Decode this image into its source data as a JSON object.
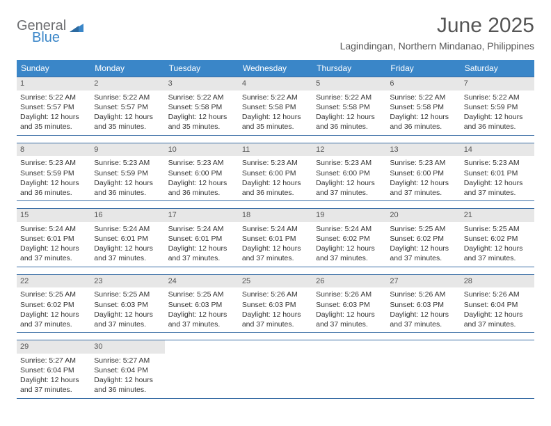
{
  "brand": {
    "part1": "General",
    "part2": "Blue"
  },
  "title": "June 2025",
  "location": "Lagindingan, Northern Mindanao, Philippines",
  "colors": {
    "header_bg": "#3a86c8",
    "header_text": "#ffffff",
    "row_border": "#3a6ea5",
    "daynum_bg": "#e7e7e7",
    "text": "#333333",
    "brand_gray": "#6d6e71",
    "brand_blue": "#3a86c8",
    "page_bg": "#ffffff"
  },
  "weekdays": [
    "Sunday",
    "Monday",
    "Tuesday",
    "Wednesday",
    "Thursday",
    "Friday",
    "Saturday"
  ],
  "weeks": [
    [
      {
        "num": "1",
        "sunrise": "Sunrise: 5:22 AM",
        "sunset": "Sunset: 5:57 PM",
        "daylight": "Daylight: 12 hours and 35 minutes."
      },
      {
        "num": "2",
        "sunrise": "Sunrise: 5:22 AM",
        "sunset": "Sunset: 5:57 PM",
        "daylight": "Daylight: 12 hours and 35 minutes."
      },
      {
        "num": "3",
        "sunrise": "Sunrise: 5:22 AM",
        "sunset": "Sunset: 5:58 PM",
        "daylight": "Daylight: 12 hours and 35 minutes."
      },
      {
        "num": "4",
        "sunrise": "Sunrise: 5:22 AM",
        "sunset": "Sunset: 5:58 PM",
        "daylight": "Daylight: 12 hours and 35 minutes."
      },
      {
        "num": "5",
        "sunrise": "Sunrise: 5:22 AM",
        "sunset": "Sunset: 5:58 PM",
        "daylight": "Daylight: 12 hours and 36 minutes."
      },
      {
        "num": "6",
        "sunrise": "Sunrise: 5:22 AM",
        "sunset": "Sunset: 5:58 PM",
        "daylight": "Daylight: 12 hours and 36 minutes."
      },
      {
        "num": "7",
        "sunrise": "Sunrise: 5:22 AM",
        "sunset": "Sunset: 5:59 PM",
        "daylight": "Daylight: 12 hours and 36 minutes."
      }
    ],
    [
      {
        "num": "8",
        "sunrise": "Sunrise: 5:23 AM",
        "sunset": "Sunset: 5:59 PM",
        "daylight": "Daylight: 12 hours and 36 minutes."
      },
      {
        "num": "9",
        "sunrise": "Sunrise: 5:23 AM",
        "sunset": "Sunset: 5:59 PM",
        "daylight": "Daylight: 12 hours and 36 minutes."
      },
      {
        "num": "10",
        "sunrise": "Sunrise: 5:23 AM",
        "sunset": "Sunset: 6:00 PM",
        "daylight": "Daylight: 12 hours and 36 minutes."
      },
      {
        "num": "11",
        "sunrise": "Sunrise: 5:23 AM",
        "sunset": "Sunset: 6:00 PM",
        "daylight": "Daylight: 12 hours and 36 minutes."
      },
      {
        "num": "12",
        "sunrise": "Sunrise: 5:23 AM",
        "sunset": "Sunset: 6:00 PM",
        "daylight": "Daylight: 12 hours and 37 minutes."
      },
      {
        "num": "13",
        "sunrise": "Sunrise: 5:23 AM",
        "sunset": "Sunset: 6:00 PM",
        "daylight": "Daylight: 12 hours and 37 minutes."
      },
      {
        "num": "14",
        "sunrise": "Sunrise: 5:23 AM",
        "sunset": "Sunset: 6:01 PM",
        "daylight": "Daylight: 12 hours and 37 minutes."
      }
    ],
    [
      {
        "num": "15",
        "sunrise": "Sunrise: 5:24 AM",
        "sunset": "Sunset: 6:01 PM",
        "daylight": "Daylight: 12 hours and 37 minutes."
      },
      {
        "num": "16",
        "sunrise": "Sunrise: 5:24 AM",
        "sunset": "Sunset: 6:01 PM",
        "daylight": "Daylight: 12 hours and 37 minutes."
      },
      {
        "num": "17",
        "sunrise": "Sunrise: 5:24 AM",
        "sunset": "Sunset: 6:01 PM",
        "daylight": "Daylight: 12 hours and 37 minutes."
      },
      {
        "num": "18",
        "sunrise": "Sunrise: 5:24 AM",
        "sunset": "Sunset: 6:01 PM",
        "daylight": "Daylight: 12 hours and 37 minutes."
      },
      {
        "num": "19",
        "sunrise": "Sunrise: 5:24 AM",
        "sunset": "Sunset: 6:02 PM",
        "daylight": "Daylight: 12 hours and 37 minutes."
      },
      {
        "num": "20",
        "sunrise": "Sunrise: 5:25 AM",
        "sunset": "Sunset: 6:02 PM",
        "daylight": "Daylight: 12 hours and 37 minutes."
      },
      {
        "num": "21",
        "sunrise": "Sunrise: 5:25 AM",
        "sunset": "Sunset: 6:02 PM",
        "daylight": "Daylight: 12 hours and 37 minutes."
      }
    ],
    [
      {
        "num": "22",
        "sunrise": "Sunrise: 5:25 AM",
        "sunset": "Sunset: 6:02 PM",
        "daylight": "Daylight: 12 hours and 37 minutes."
      },
      {
        "num": "23",
        "sunrise": "Sunrise: 5:25 AM",
        "sunset": "Sunset: 6:03 PM",
        "daylight": "Daylight: 12 hours and 37 minutes."
      },
      {
        "num": "24",
        "sunrise": "Sunrise: 5:25 AM",
        "sunset": "Sunset: 6:03 PM",
        "daylight": "Daylight: 12 hours and 37 minutes."
      },
      {
        "num": "25",
        "sunrise": "Sunrise: 5:26 AM",
        "sunset": "Sunset: 6:03 PM",
        "daylight": "Daylight: 12 hours and 37 minutes."
      },
      {
        "num": "26",
        "sunrise": "Sunrise: 5:26 AM",
        "sunset": "Sunset: 6:03 PM",
        "daylight": "Daylight: 12 hours and 37 minutes."
      },
      {
        "num": "27",
        "sunrise": "Sunrise: 5:26 AM",
        "sunset": "Sunset: 6:03 PM",
        "daylight": "Daylight: 12 hours and 37 minutes."
      },
      {
        "num": "28",
        "sunrise": "Sunrise: 5:26 AM",
        "sunset": "Sunset: 6:04 PM",
        "daylight": "Daylight: 12 hours and 37 minutes."
      }
    ],
    [
      {
        "num": "29",
        "sunrise": "Sunrise: 5:27 AM",
        "sunset": "Sunset: 6:04 PM",
        "daylight": "Daylight: 12 hours and 37 minutes."
      },
      {
        "num": "30",
        "sunrise": "Sunrise: 5:27 AM",
        "sunset": "Sunset: 6:04 PM",
        "daylight": "Daylight: 12 hours and 36 minutes."
      },
      null,
      null,
      null,
      null,
      null
    ]
  ]
}
